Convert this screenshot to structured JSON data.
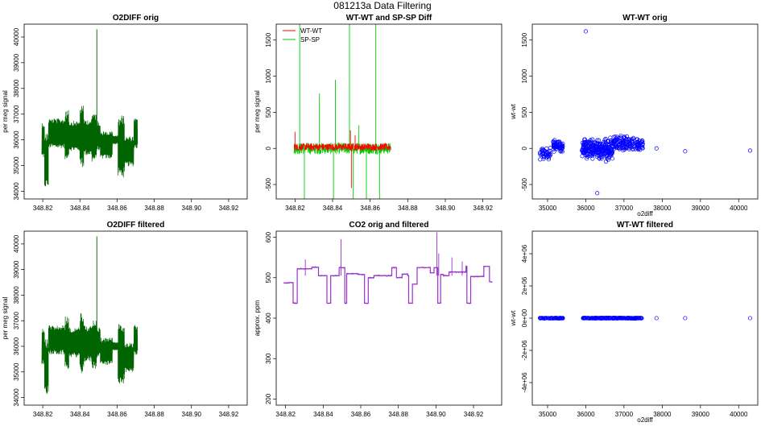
{
  "figure": {
    "title": "081213a   Data Filtering"
  },
  "chart_data": [
    {
      "id": "p1",
      "type": "line",
      "title": "O2DIFF orig",
      "xlabel": "",
      "ylabel": "per meg signal",
      "xlim": [
        348.81,
        348.93
      ],
      "ylim": [
        33700,
        40500
      ],
      "xticks": [
        "348.82",
        "348.84",
        "348.86",
        "348.88",
        "348.90",
        "348.92"
      ],
      "xtick_values": [
        348.82,
        348.84,
        348.86,
        348.88,
        348.9,
        348.92
      ],
      "yticks": [
        "34000",
        "35000",
        "36000",
        "37000",
        "38000",
        "39000",
        "40000"
      ],
      "ytick_values": [
        34000,
        35000,
        36000,
        37000,
        38000,
        39000,
        40000
      ],
      "series": [
        {
          "color": "#006400",
          "x_range": [
            348.8195,
            348.871
          ],
          "segments": [
            [
              348.8195,
              348.821,
              35200,
              36800
            ],
            [
              348.821,
              348.823,
              34000,
              36400
            ],
            [
              348.823,
              348.832,
              35600,
              36900
            ],
            [
              348.832,
              348.834,
              35000,
              37300
            ],
            [
              348.834,
              348.84,
              35500,
              36800
            ],
            [
              348.84,
              348.842,
              34800,
              37500
            ],
            [
              348.842,
              348.8465,
              35300,
              36900
            ],
            [
              348.8465,
              348.849,
              35000,
              37200
            ],
            [
              348.849,
              348.851,
              35500,
              36800
            ],
            [
              348.851,
              348.8575,
              35200,
              36400
            ],
            [
              348.8575,
              348.8605,
              35800,
              36200
            ],
            [
              348.8605,
              348.864,
              34400,
              37100
            ],
            [
              348.864,
              348.869,
              34900,
              36200
            ],
            [
              348.869,
              348.871,
              35600,
              36900
            ]
          ],
          "spikes": [
            [
              348.8491,
              40300
            ]
          ]
        }
      ]
    },
    {
      "id": "p2",
      "type": "line",
      "title": "WT-WT and SP-SP Diff",
      "xlabel": "",
      "ylabel": "per meg signal",
      "xlim": [
        348.81,
        348.93
      ],
      "ylim": [
        -700,
        1720
      ],
      "xticks": [
        "348.82",
        "348.84",
        "348.86",
        "348.88",
        "348.90",
        "348.92"
      ],
      "xtick_values": [
        348.82,
        348.84,
        348.86,
        348.88,
        348.9,
        348.92
      ],
      "yticks": [
        "-500",
        "0",
        "500",
        "1000",
        "1500"
      ],
      "ytick_values": [
        -500,
        0,
        500,
        1000,
        1500
      ],
      "legend": {
        "position": "top-left",
        "entries": [
          {
            "label": "WT-WT",
            "color": "#ff0000"
          },
          {
            "label": "SP-SP",
            "color": "#00cc00"
          }
        ]
      },
      "series": [
        {
          "name": "SP-SP",
          "color": "#00cc00",
          "x_range": [
            348.8195,
            348.871
          ],
          "center": 0,
          "noise": 80,
          "spikes": [
            [
              348.8225,
              1720
            ],
            [
              348.825,
              -700
            ],
            [
              348.833,
              760
            ],
            [
              348.8405,
              -700
            ],
            [
              348.8415,
              950
            ],
            [
              348.849,
              1720
            ],
            [
              348.851,
              -700
            ],
            [
              348.854,
              320
            ],
            [
              348.858,
              -700
            ],
            [
              348.863,
              1720
            ],
            [
              348.865,
              -700
            ]
          ]
        },
        {
          "name": "WT-WT",
          "color": "#ff0000",
          "x_range": [
            348.8195,
            348.871
          ],
          "center": 20,
          "noise": 50,
          "spikes": [
            [
              348.82,
              230
            ],
            [
              348.8495,
              250
            ],
            [
              348.85,
              -550
            ],
            [
              348.852,
              180
            ]
          ]
        }
      ]
    },
    {
      "id": "p3",
      "type": "scatter",
      "title": "WT-WT orig",
      "xlabel": "o2diff",
      "ylabel": "wt-wt",
      "xlim": [
        34600,
        40500
      ],
      "ylim": [
        -700,
        1720
      ],
      "xticks": [
        "35000",
        "36000",
        "37000",
        "38000",
        "39000",
        "40000"
      ],
      "xtick_values": [
        35000,
        36000,
        37000,
        38000,
        39000,
        40000
      ],
      "yticks": [
        "-500",
        "0",
        "500",
        "1000",
        "1500"
      ],
      "ytick_values": [
        -500,
        0,
        500,
        1000,
        1500
      ],
      "color": "#0000ff",
      "clusters": [
        {
          "x": [
            34800,
            35100
          ],
          "y": [
            -220,
            50
          ],
          "n": 40
        },
        {
          "x": [
            35150,
            35400
          ],
          "y": [
            -80,
            150
          ],
          "n": 60
        },
        {
          "x": [
            35900,
            36700
          ],
          "y": [
            -220,
            180
          ],
          "n": 250
        },
        {
          "x": [
            36700,
            37250
          ],
          "y": [
            -80,
            220
          ],
          "n": 110
        },
        {
          "x": [
            37300,
            37500
          ],
          "y": [
            -60,
            160
          ],
          "n": 40
        }
      ],
      "points": [
        [
          36000,
          1620
        ],
        [
          36300,
          -620
        ],
        [
          37850,
          0
        ],
        [
          38600,
          -40
        ],
        [
          40300,
          -30
        ]
      ]
    },
    {
      "id": "p4",
      "type": "line",
      "title": "O2DIFF filtered",
      "xlabel": "",
      "ylabel": "per meg signal",
      "xlim": [
        348.81,
        348.93
      ],
      "ylim": [
        33700,
        40500
      ],
      "xticks": [
        "348.82",
        "348.84",
        "348.86",
        "348.88",
        "348.90",
        "348.92"
      ],
      "xtick_values": [
        348.82,
        348.84,
        348.86,
        348.88,
        348.9,
        348.92
      ],
      "yticks": [
        "34000",
        "35000",
        "36000",
        "37000",
        "38000",
        "39000",
        "40000"
      ],
      "ytick_values": [
        34000,
        35000,
        36000,
        37000,
        38000,
        39000,
        40000
      ],
      "series": [
        {
          "color": "#006400",
          "x_range": [
            348.8195,
            348.871
          ],
          "segments": [
            [
              348.8195,
              348.821,
              35200,
              36800
            ],
            [
              348.821,
              348.823,
              34000,
              36400
            ],
            [
              348.823,
              348.832,
              35600,
              36900
            ],
            [
              348.832,
              348.834,
              35000,
              37300
            ],
            [
              348.834,
              348.84,
              35500,
              36800
            ],
            [
              348.84,
              348.842,
              34800,
              37500
            ],
            [
              348.842,
              348.8465,
              35300,
              36900
            ],
            [
              348.8465,
              348.849,
              35000,
              37200
            ],
            [
              348.849,
              348.851,
              35500,
              36800
            ],
            [
              348.851,
              348.8575,
              35200,
              36400
            ],
            [
              348.8575,
              348.8605,
              35800,
              36200
            ],
            [
              348.8605,
              348.864,
              34400,
              37100
            ],
            [
              348.864,
              348.869,
              34900,
              36200
            ],
            [
              348.869,
              348.871,
              35600,
              36900
            ]
          ],
          "spikes": [
            [
              348.8491,
              40300
            ]
          ]
        }
      ]
    },
    {
      "id": "p5",
      "type": "line",
      "title": "CO2 orig and filtered",
      "xlabel": "",
      "ylabel": "approx. ppm",
      "xlim": [
        348.815,
        348.935
      ],
      "ylim": [
        185,
        615
      ],
      "xticks": [
        "348.82",
        "348.84",
        "348.86",
        "348.88",
        "348.90",
        "348.92"
      ],
      "xtick_values": [
        348.82,
        348.84,
        348.86,
        348.88,
        348.9,
        348.92
      ],
      "yticks": [
        "200",
        "300",
        "400",
        "500",
        "600"
      ],
      "ytick_values": [
        200,
        300,
        400,
        500,
        600
      ],
      "series": [
        {
          "color": "#9932cc",
          "steps": [
            [
              348.819,
              487
            ],
            [
              348.822,
              488
            ],
            [
              348.824,
              437
            ],
            [
              348.8262,
              522
            ],
            [
              348.834,
              526
            ],
            [
              348.8375,
              505
            ],
            [
              348.842,
              437
            ],
            [
              348.844,
              505
            ],
            [
              348.8485,
              525
            ],
            [
              348.8515,
              437
            ],
            [
              348.8525,
              510
            ],
            [
              348.8585,
              508
            ],
            [
              348.862,
              437
            ],
            [
              348.864,
              500
            ],
            [
              348.867,
              505
            ],
            [
              348.872,
              505
            ],
            [
              348.8765,
              525
            ],
            [
              348.879,
              500
            ],
            [
              348.882,
              509
            ],
            [
              348.885,
              505
            ],
            [
              348.8855,
              437
            ],
            [
              348.8875,
              484
            ],
            [
              348.89,
              525
            ],
            [
              348.897,
              512
            ],
            [
              348.899,
              525
            ],
            [
              348.901,
              437
            ],
            [
              348.9025,
              508
            ],
            [
              348.904,
              505
            ],
            [
              348.907,
              514
            ],
            [
              348.916,
              528
            ],
            [
              348.9165,
              437
            ],
            [
              348.9185,
              503
            ],
            [
              348.9255,
              528
            ],
            [
              348.9285,
              490
            ],
            [
              348.93,
              490
            ]
          ],
          "spikes": [
            [
              348.8495,
              595
            ],
            [
              348.9005,
              612
            ],
            [
              348.9015,
              560
            ],
            [
              348.9085,
              550
            ],
            [
              348.914,
              540
            ],
            [
              348.8305,
              545
            ]
          ]
        }
      ]
    },
    {
      "id": "p6",
      "type": "scatter",
      "title": "WT-WT filtered",
      "xlabel": "o2diff",
      "ylabel": "wt-wt",
      "xlim": [
        34600,
        40500
      ],
      "ylim": [
        -5400000,
        5400000
      ],
      "xticks": [
        "35000",
        "36000",
        "37000",
        "38000",
        "39000",
        "40000"
      ],
      "xtick_values": [
        35000,
        36000,
        37000,
        38000,
        39000,
        40000
      ],
      "yticks": [
        "-4e+06",
        "-2e+06",
        "0e+00",
        "2e+06",
        "4e+06"
      ],
      "ytick_values": [
        -4000000,
        -2000000,
        0,
        2000000,
        4000000
      ],
      "color": "#0000ff",
      "clusters": [
        {
          "x": [
            34800,
            35400
          ],
          "y": [
            -30000,
            30000
          ],
          "n": 60
        },
        {
          "x": [
            35900,
            37500
          ],
          "y": [
            -30000,
            30000
          ],
          "n": 220
        }
      ],
      "points": [
        [
          37850,
          0
        ],
        [
          38600,
          0
        ],
        [
          40300,
          0
        ]
      ]
    }
  ]
}
